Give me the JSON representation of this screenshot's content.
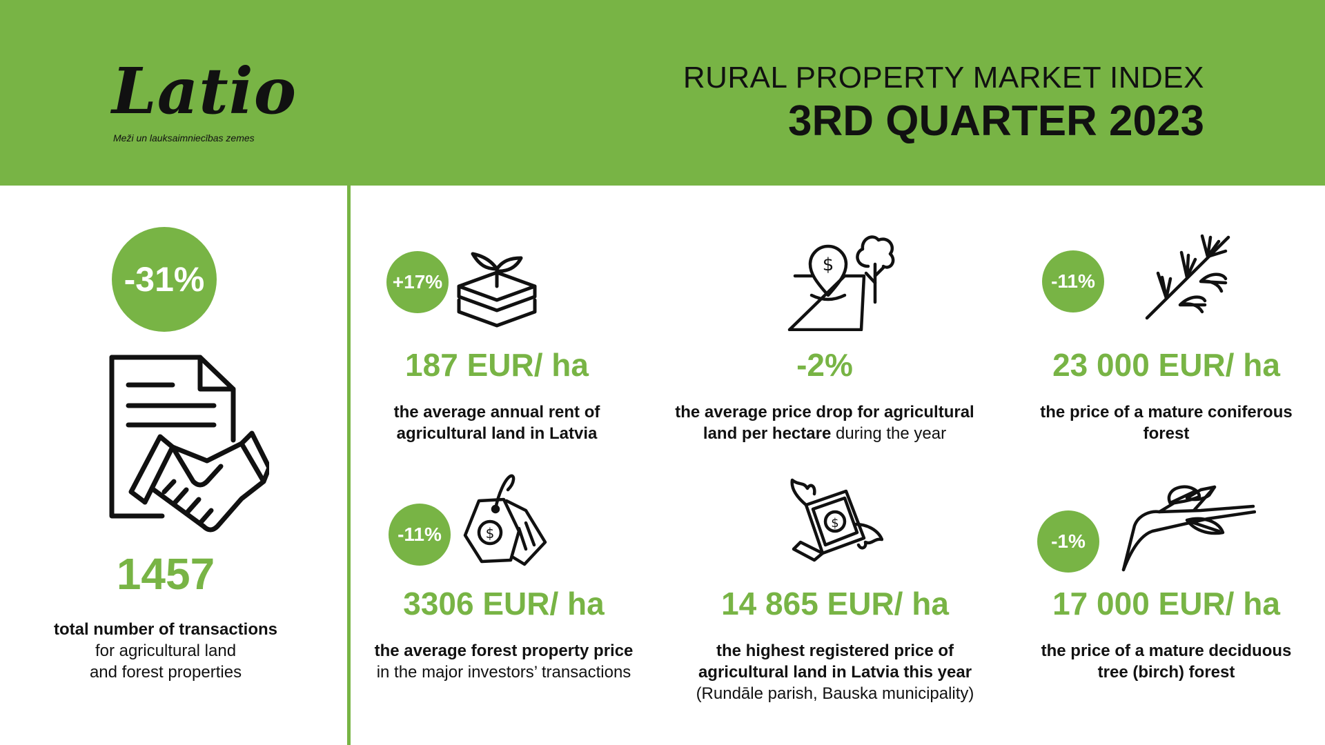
{
  "header": {
    "logo_text": "Latio",
    "logo_tagline": "Meži un lauksaimniecības zemes",
    "title": "RURAL PROPERTY MARKET INDEX",
    "subtitle": "3RD QUARTER 2023"
  },
  "colors": {
    "brand_green": "#78b445",
    "text": "#111111",
    "background": "#ffffff"
  },
  "transactions": {
    "badge": "-31%",
    "icon": "contract-handshake-icon",
    "value": "1457",
    "desc_bold": "total number of transactions",
    "desc_line2": "for agricultural land",
    "desc_line3": "and forest properties"
  },
  "stats": {
    "rent": {
      "badge": "+17%",
      "icon": "soil-sprout-icon",
      "value": "187 EUR/ ha",
      "desc_line1": "the average annual rent of",
      "desc_line2": "agricultural land in Latvia"
    },
    "price_drop": {
      "icon": "land-price-pin-tree-icon",
      "value": "-2%",
      "desc_line1": "the average price drop for agricultural",
      "desc_line2_bold": "land per hectare",
      "desc_line2_normal": " during the year"
    },
    "coniferous": {
      "badge": "-11%",
      "icon": "conifer-branch-icon",
      "value": "23 000 EUR/ ha",
      "desc_line1": "the price of a mature coniferous",
      "desc_line2": "forest"
    },
    "forest_price": {
      "badge": "-11%",
      "icon": "price-tag-icon",
      "value": "3306 EUR/ ha",
      "desc_line1": "the average forest property price",
      "desc_line2": "in the major investors’ transactions"
    },
    "highest": {
      "icon": "flying-money-icon",
      "value": "14 865 EUR/ ha",
      "desc_line1": "the highest registered price of",
      "desc_line2": "agricultural land in Latvia this year",
      "desc_line3": "(Rundāle parish, Bauska municipality)"
    },
    "deciduous": {
      "badge": "-1%",
      "icon": "birch-branch-icon",
      "value": "17 000 EUR/ ha",
      "desc_line1": "the price of a mature deciduous",
      "desc_line2": "tree (birch) forest"
    }
  }
}
